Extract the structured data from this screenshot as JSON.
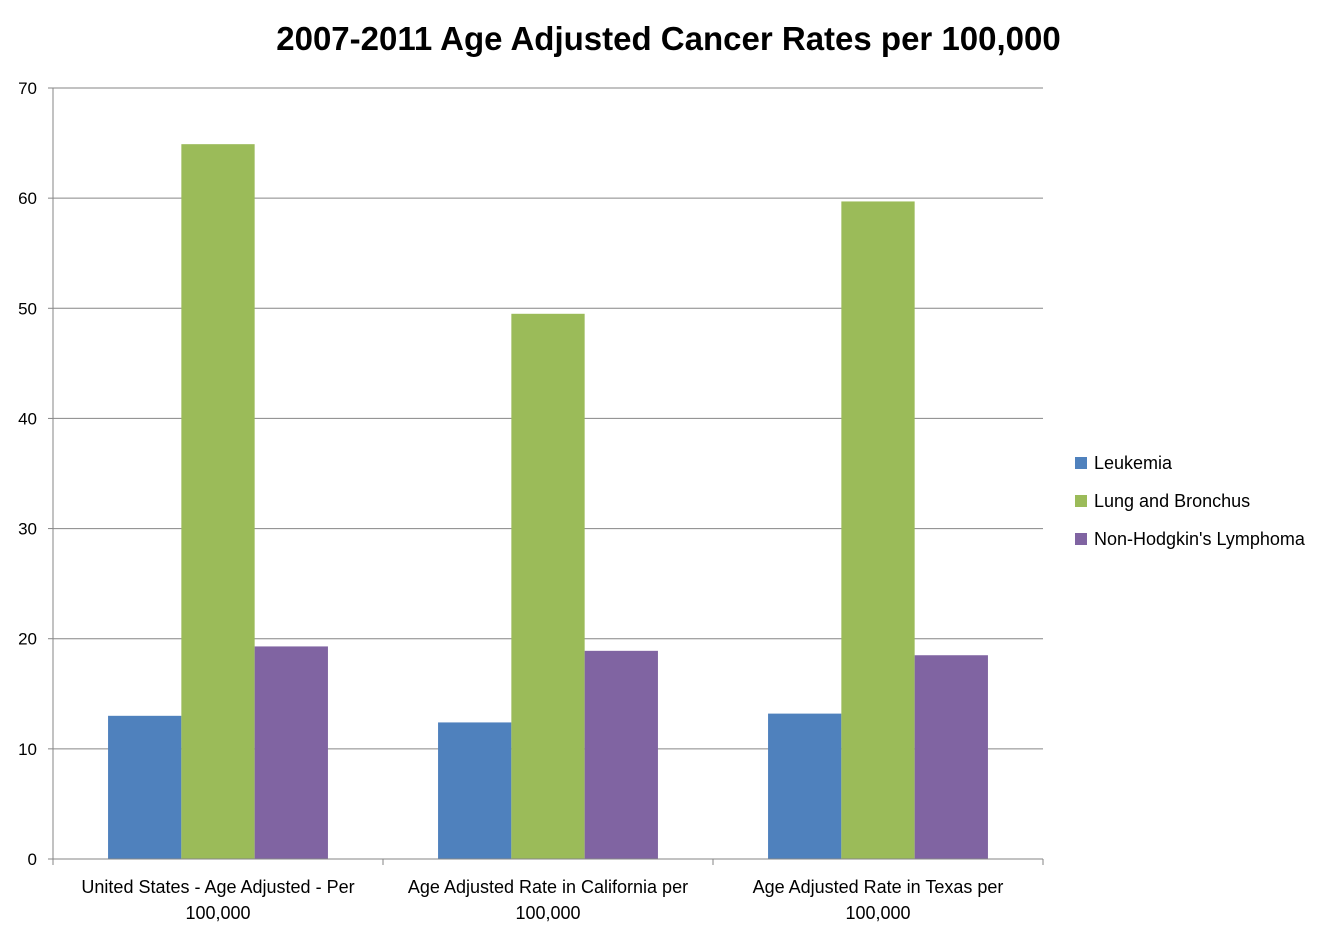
{
  "chart_data": {
    "type": "bar",
    "title": "2007-2011 Age Adjusted Cancer Rates per 100,000",
    "xlabel": "",
    "ylabel": "",
    "ylim": [
      0,
      70
    ],
    "yticks": [
      0,
      10,
      20,
      30,
      40,
      50,
      60,
      70
    ],
    "grid": true,
    "legend_position": "right",
    "categories": [
      [
        "United States - Age Adjusted - Per",
        "100,000"
      ],
      [
        "Age Adjusted Rate in California per",
        "100,000"
      ],
      [
        "Age Adjusted Rate in Texas per",
        "100,000"
      ]
    ],
    "series": [
      {
        "name": "Leukemia",
        "color": "#4F81BD",
        "values": [
          13.0,
          12.4,
          13.2
        ]
      },
      {
        "name": "Lung and Bronchus",
        "color": "#9BBB59",
        "values": [
          64.9,
          49.5,
          59.7
        ]
      },
      {
        "name": "Non-Hodgkin's Lymphoma",
        "color": "#8064A2",
        "values": [
          19.3,
          18.9,
          18.5
        ]
      }
    ]
  }
}
